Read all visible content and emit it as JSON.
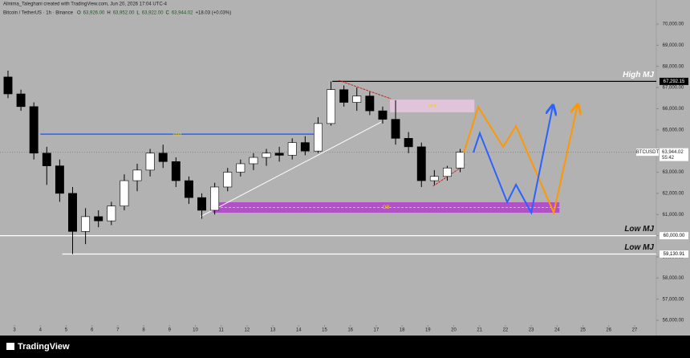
{
  "header": {
    "credit": "Alinima_Taleghani created with TradingView.com, Jun 20, 2026 17:04 UTC-4",
    "symbol_line": "Bitcoin / TetherUS · 1h · Binance",
    "ohlc": [
      "O",
      "63,926.00",
      "H",
      "63,952.00",
      "L",
      "63,922.00",
      "C",
      "63,944.02",
      "+18.03 (+0.03%)"
    ]
  },
  "footer": {
    "brand": "TradingView"
  },
  "chart_data": {
    "type": "candlestick",
    "xlim": [
      2.44,
      27.84
    ],
    "ylim": [
      55281,
      71138
    ],
    "xticks": [
      3,
      4,
      5,
      6,
      7,
      8,
      9,
      10,
      11,
      12,
      13,
      14,
      15,
      16,
      17,
      18,
      19,
      20,
      21,
      22,
      23,
      24,
      25,
      26,
      27
    ],
    "yticks": [
      {
        "value": 56000,
        "label": "56,000.00"
      },
      {
        "value": 57000,
        "label": "57,000.00"
      },
      {
        "value": 58000,
        "label": "58,000.00"
      },
      {
        "value": 59000,
        "label": "59,000.00"
      },
      {
        "value": 60000,
        "label": "60,000.00"
      },
      {
        "value": 61000,
        "label": "61,000.00"
      },
      {
        "value": 62000,
        "label": "62,000.00"
      },
      {
        "value": 63000,
        "label": "63,000.00"
      },
      {
        "value": 64000,
        "label": "64,000.00"
      },
      {
        "value": 65000,
        "label": "65,000.00"
      },
      {
        "value": 66000,
        "label": "66,000.00"
      },
      {
        "value": 67000,
        "label": "67,000.00"
      },
      {
        "value": 68000,
        "label": "68,000.00"
      },
      {
        "value": 69000,
        "label": "69,000.00"
      },
      {
        "value": 70000,
        "label": "70,000.00"
      }
    ],
    "up_color": "#ffffff",
    "down_color": "#000000",
    "candles": {
      "x": [
        2.75,
        3.25,
        3.75,
        4.25,
        4.75,
        5.25,
        5.75,
        6.25,
        6.75,
        7.25,
        7.75,
        8.25,
        8.75,
        9.25,
        9.75,
        10.25,
        10.75,
        11.25,
        11.75,
        12.25,
        12.75,
        13.25,
        13.75,
        14.25,
        14.75,
        15.25,
        15.75,
        16.25,
        16.75,
        17.25,
        17.75,
        18.25,
        18.75,
        19.25,
        19.75,
        20.25
      ],
      "open": [
        67500,
        66700,
        66100,
        63900,
        63300,
        62000,
        60200,
        60900,
        60700,
        61400,
        62600,
        63100,
        63900,
        63500,
        62600,
        61800,
        61200,
        62300,
        63000,
        63400,
        63700,
        63900,
        63800,
        64400,
        64000,
        65300,
        66900,
        66300,
        66600,
        65900,
        65500,
        64600,
        64200,
        62600,
        62800,
        63200
      ],
      "high": [
        67800,
        66900,
        66300,
        64200,
        63600,
        62300,
        61300,
        61200,
        61600,
        62900,
        63400,
        64100,
        64300,
        63700,
        62800,
        62000,
        62500,
        63200,
        63600,
        63900,
        64100,
        64200,
        64600,
        64700,
        65600,
        67290,
        67100,
        67000,
        66800,
        66100,
        66400,
        64900,
        64400,
        63100,
        63300,
        64100
      ],
      "low": [
        66500,
        65900,
        63600,
        62400,
        61600,
        59131,
        59600,
        60400,
        60500,
        61200,
        62100,
        62800,
        63200,
        62300,
        61500,
        60800,
        61000,
        62100,
        62800,
        63100,
        63300,
        63500,
        63600,
        63800,
        63900,
        65200,
        66100,
        65900,
        65700,
        65300,
        64300,
        63900,
        62300,
        62400,
        62600,
        63000
      ],
      "close": [
        66700,
        66100,
        63900,
        63300,
        62000,
        60200,
        60900,
        60700,
        61400,
        62600,
        63100,
        63900,
        63500,
        62600,
        61800,
        61200,
        62300,
        63000,
        63400,
        63700,
        63900,
        63800,
        64400,
        64000,
        65300,
        66900,
        66300,
        66600,
        65900,
        65500,
        64600,
        64200,
        62600,
        62800,
        63200,
        63944.02
      ]
    },
    "levels": [
      {
        "label": "High MJ",
        "price": 67292.15,
        "price_label": "67,292.15",
        "from": 15.3,
        "color": "#000000"
      },
      {
        "label": "Low MJ",
        "price": 60000,
        "price_label": "60,000.00",
        "from": 2.44,
        "color": "#ffffff"
      },
      {
        "label": "Low MJ",
        "price": 59130.91,
        "price_label": "59,130.91",
        "from": 4.85,
        "color": "#ffffff"
      }
    ],
    "last": {
      "symbol": "BTCUSDT",
      "price": 63944.02,
      "price_label": "63,944.02",
      "countdown": "55:42"
    },
    "zones": [
      {
        "label": "sell",
        "from": 17.53,
        "to": 20.8,
        "top": 66430,
        "bottom": 65830,
        "color": "#e8c8e0"
      },
      {
        "label": "OB",
        "from": 10.67,
        "to": 24.09,
        "top": 61580,
        "bottom": 61085,
        "color": "#b040c8"
      }
    ],
    "shift": {
      "label": "shift",
      "from": 4.0,
      "to": 14.6,
      "price": 64800,
      "color": "#2962ff"
    },
    "trendlines": [
      {
        "x": [
          10.2,
          17.19
        ],
        "values": [
          60900,
          65370
        ],
        "color": "#ffffff"
      },
      {
        "x": [
          15.55,
          17.57
        ],
        "values": [
          67340,
          66470
        ],
        "color": "#c62828"
      },
      {
        "x": [
          19.2,
          20.45
        ],
        "values": [
          62340,
          63360
        ],
        "color": "#c62828"
      }
    ],
    "projections": [
      {
        "color": "#ff9800",
        "x": [
          20.39,
          20.95,
          21.91,
          22.41,
          23.87,
          24.8
        ],
        "values": [
          63930,
          66090,
          64200,
          65180,
          61090,
          66210
        ]
      },
      {
        "color": "#2962ff",
        "x": [
          20.76,
          21.01,
          22.07,
          22.41,
          23.0,
          23.84
        ],
        "values": [
          63930,
          64840,
          61580,
          62410,
          61090,
          66170
        ]
      }
    ]
  }
}
